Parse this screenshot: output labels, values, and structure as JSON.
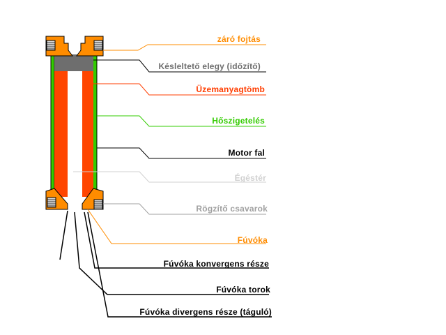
{
  "colors": {
    "seal": "#ff8c00",
    "delay": "#ff8c00",
    "delay_fill": "#6e6e6e",
    "fuel": "#ff3d00",
    "fuel_fill": "#ff4500",
    "insulation": "#33cc00",
    "wall": "#000000",
    "chamber": "#d0d0d0",
    "screws": "#a0a0a0",
    "nozzle": "#ff8c00",
    "nozzle_conv": "#000000",
    "throat": "#000000",
    "nozzle_div": "#000000"
  },
  "labels": {
    "seal": "záró fojtás",
    "delay": "Késleltető elegy (időzítő)",
    "fuel": "Üzemanyagtömb",
    "insulation": "Hőszigetelés",
    "wall": "Motor fal",
    "chamber": "Égéstér",
    "screws": "Rögzítő csavarok",
    "nozzle": "Fúvóka",
    "nozzle_conv": "Fúvóka konvergens része",
    "throat": "Fúvóka torok",
    "nozzle_div": "Fúvóka divergens része (táguló)"
  }
}
